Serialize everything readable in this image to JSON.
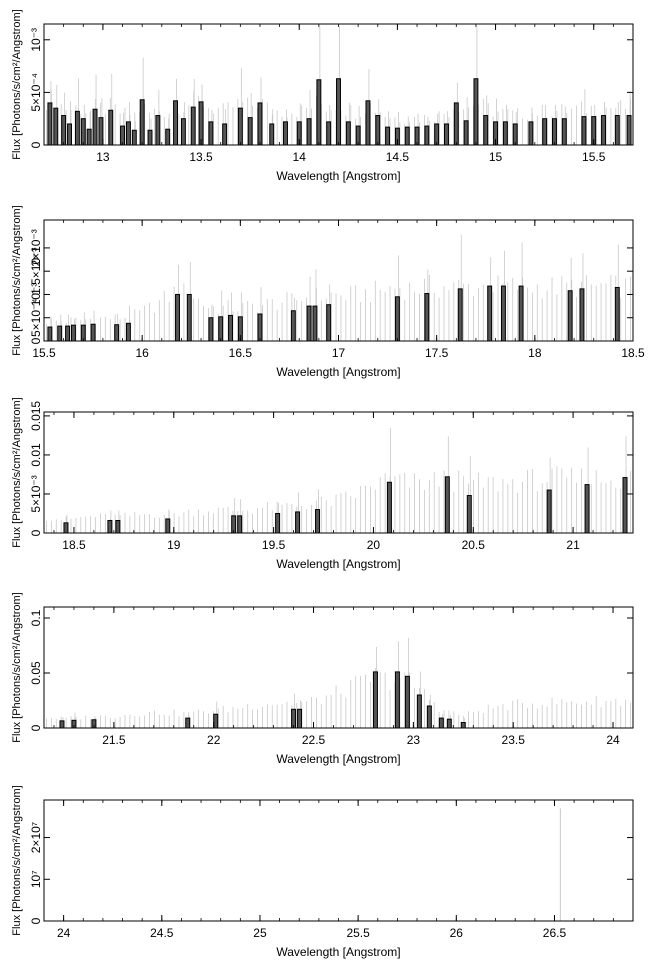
{
  "chart_data": [
    {
      "type": "bar",
      "xlabel": "Wavelength [Angstrom]",
      "ylabel": "Flux [Photons/s/cm²/Angstrom]",
      "xlim": [
        12.7,
        15.7
      ],
      "ylim": [
        0,
        0.00115
      ],
      "xticks": [
        13,
        13.5,
        14,
        14.5,
        15,
        15.5
      ],
      "xtick_labels": [
        "13",
        "13.5",
        "14",
        "14.5",
        "15",
        "15.5"
      ],
      "yticks": [
        0,
        0.0005,
        0.001
      ],
      "ytick_labels": [
        "0",
        "5×10⁻⁴",
        "10⁻³"
      ],
      "bins": [
        [
          12.73,
          0.0004
        ],
        [
          12.76,
          0.00035
        ],
        [
          12.8,
          0.00028
        ],
        [
          12.83,
          0.0002
        ],
        [
          12.87,
          0.00032
        ],
        [
          12.9,
          0.00025
        ],
        [
          12.93,
          0.00015
        ],
        [
          12.96,
          0.00034
        ],
        [
          12.99,
          0.00026
        ],
        [
          13.04,
          0.00033
        ],
        [
          13.1,
          0.00018
        ],
        [
          13.13,
          0.00022
        ],
        [
          13.16,
          0.00014
        ],
        [
          13.2,
          0.00043
        ],
        [
          13.24,
          0.00014
        ],
        [
          13.28,
          0.00028
        ],
        [
          13.33,
          0.00015
        ],
        [
          13.37,
          0.00042
        ],
        [
          13.41,
          0.00025
        ],
        [
          13.46,
          0.00036
        ],
        [
          13.5,
          0.00041
        ],
        [
          13.55,
          0.00022
        ],
        [
          13.62,
          0.0002
        ],
        [
          13.7,
          0.00035
        ],
        [
          13.75,
          0.00026
        ],
        [
          13.8,
          0.0004
        ],
        [
          13.86,
          0.0002
        ],
        [
          13.93,
          0.00022
        ],
        [
          14.0,
          0.00022
        ],
        [
          14.05,
          0.00025
        ],
        [
          14.1,
          0.00062
        ],
        [
          14.15,
          0.00022
        ],
        [
          14.2,
          0.00063
        ],
        [
          14.25,
          0.00022
        ],
        [
          14.3,
          0.00018
        ],
        [
          14.35,
          0.00042
        ],
        [
          14.4,
          0.00028
        ],
        [
          14.45,
          0.00017
        ],
        [
          14.5,
          0.00016
        ],
        [
          14.55,
          0.00017
        ],
        [
          14.6,
          0.00017
        ],
        [
          14.65,
          0.00018
        ],
        [
          14.7,
          0.0002
        ],
        [
          14.75,
          0.0002
        ],
        [
          14.8,
          0.0004
        ],
        [
          14.85,
          0.00023
        ],
        [
          14.9,
          0.00063
        ],
        [
          14.95,
          0.00028
        ],
        [
          15.0,
          0.00022
        ],
        [
          15.05,
          0.00022
        ],
        [
          15.1,
          0.0002
        ],
        [
          15.18,
          0.00022
        ],
        [
          15.25,
          0.00025
        ],
        [
          15.3,
          0.00025
        ],
        [
          15.35,
          0.00025
        ],
        [
          15.45,
          0.00027
        ],
        [
          15.5,
          0.00027
        ],
        [
          15.55,
          0.00028
        ],
        [
          15.62,
          0.00028
        ],
        [
          15.68,
          0.00028
        ]
      ]
    },
    {
      "type": "bar",
      "xlabel": "Wavelength [Angstrom]",
      "ylabel": "Flux [Photons/s/cm²/Angstrom]",
      "xlim": [
        15.5,
        18.5
      ],
      "ylim": [
        0,
        0.0026
      ],
      "xticks": [
        15.5,
        16,
        16.5,
        17,
        17.5,
        18,
        18.5
      ],
      "xtick_labels": [
        "15.5",
        "16",
        "16.5",
        "17",
        "17.5",
        "18",
        "18.5"
      ],
      "yticks": [
        0,
        0.0005,
        0.001,
        0.0015,
        0.002
      ],
      "ytick_labels": [
        "0",
        "5×10⁻⁴",
        "10⁻³",
        "1.5×10⁻³",
        "2×10⁻³"
      ],
      "bins": [
        [
          15.53,
          0.0003
        ],
        [
          15.58,
          0.00032
        ],
        [
          15.62,
          0.00032
        ],
        [
          15.65,
          0.00034
        ],
        [
          15.7,
          0.00034
        ],
        [
          15.75,
          0.00036
        ],
        [
          15.87,
          0.00035
        ],
        [
          15.93,
          0.00038
        ],
        [
          16.18,
          0.001
        ],
        [
          16.24,
          0.001
        ],
        [
          16.35,
          0.0005
        ],
        [
          16.4,
          0.00052
        ],
        [
          16.45,
          0.00055
        ],
        [
          16.5,
          0.00052
        ],
        [
          16.6,
          0.00058
        ],
        [
          16.77,
          0.00065
        ],
        [
          16.85,
          0.00075
        ],
        [
          16.88,
          0.00075
        ],
        [
          16.95,
          0.00078
        ],
        [
          17.3,
          0.00095
        ],
        [
          17.45,
          0.00102
        ],
        [
          17.62,
          0.00112
        ],
        [
          17.77,
          0.00118
        ],
        [
          17.84,
          0.00118
        ],
        [
          17.93,
          0.00118
        ],
        [
          18.18,
          0.00108
        ],
        [
          18.24,
          0.00112
        ],
        [
          18.42,
          0.00115
        ]
      ]
    },
    {
      "type": "bar",
      "xlabel": "Wavelength [Angstrom]",
      "ylabel": "Flux [Photons/s/cm²/Angstrom]",
      "xlim": [
        18.35,
        21.3
      ],
      "ylim": [
        0,
        0.0155
      ],
      "xticks": [
        18.5,
        19,
        19.5,
        20,
        20.5,
        21
      ],
      "xtick_labels": [
        "18.5",
        "19",
        "19.5",
        "20",
        "20.5",
        "21"
      ],
      "yticks": [
        0,
        0.005,
        0.01,
        0.015
      ],
      "ytick_labels": [
        "0",
        "5×10⁻³",
        "0.01",
        "0.015"
      ],
      "bins": [
        [
          18.46,
          0.0013
        ],
        [
          18.68,
          0.0016
        ],
        [
          18.72,
          0.0016
        ],
        [
          18.97,
          0.0018
        ],
        [
          19.3,
          0.0022
        ],
        [
          19.33,
          0.0022
        ],
        [
          19.52,
          0.0025
        ],
        [
          19.62,
          0.0027
        ],
        [
          19.72,
          0.003
        ],
        [
          20.08,
          0.0065
        ],
        [
          20.37,
          0.0072
        ],
        [
          20.48,
          0.0048
        ],
        [
          20.88,
          0.0055
        ],
        [
          21.07,
          0.0062
        ],
        [
          21.26,
          0.0071
        ]
      ]
    },
    {
      "type": "bar",
      "xlabel": "Wavelength [Angstrom]",
      "ylabel": "Flux [Photons/s/cm²/Angstrom]",
      "xlim": [
        21.15,
        24.1
      ],
      "ylim": [
        0,
        0.11
      ],
      "xticks": [
        21.5,
        22,
        22.5,
        23,
        23.5,
        24
      ],
      "xtick_labels": [
        "21.5",
        "22",
        "22.5",
        "23",
        "23.5",
        "24"
      ],
      "yticks": [
        0,
        0.05,
        0.1
      ],
      "ytick_labels": [
        "0",
        "0.05",
        "0.1"
      ],
      "bins": [
        [
          21.24,
          0.0065
        ],
        [
          21.3,
          0.007
        ],
        [
          21.4,
          0.0075
        ],
        [
          21.87,
          0.009
        ],
        [
          22.01,
          0.0125
        ],
        [
          22.4,
          0.017
        ],
        [
          22.43,
          0.017
        ],
        [
          22.81,
          0.051
        ],
        [
          22.92,
          0.051
        ],
        [
          22.97,
          0.047
        ],
        [
          23.03,
          0.03
        ],
        [
          23.08,
          0.02
        ],
        [
          23.14,
          0.009
        ],
        [
          23.18,
          0.008
        ],
        [
          23.25,
          0.005
        ]
      ]
    },
    {
      "type": "bar",
      "xlabel": "Wavelength [Angstrom]",
      "ylabel": "Flux [Photons/s/cm²/Angstrom]",
      "xlim": [
        23.9,
        26.9
      ],
      "ylim": [
        0,
        29000000
      ],
      "xticks": [
        24,
        24.5,
        25,
        25.5,
        26,
        26.5
      ],
      "xtick_labels": [
        "24",
        "24.5",
        "25",
        "25.5",
        "26",
        "26.5"
      ],
      "yticks": [
        0,
        10000000,
        20000000
      ],
      "ytick_labels": [
        "0",
        "10⁷",
        "2×10⁷"
      ],
      "bins": [
        [
          26.53,
          27000000
        ]
      ]
    }
  ]
}
